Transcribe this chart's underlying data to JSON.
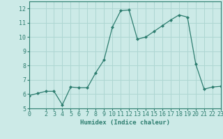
{
  "x": [
    0,
    1,
    2,
    3,
    4,
    5,
    6,
    7,
    8,
    9,
    10,
    11,
    12,
    13,
    14,
    15,
    16,
    17,
    18,
    19,
    20,
    21,
    22,
    23
  ],
  "y": [
    5.9,
    6.05,
    6.2,
    6.2,
    5.25,
    6.5,
    6.45,
    6.45,
    7.5,
    8.4,
    10.7,
    11.85,
    11.9,
    9.85,
    10.0,
    10.4,
    10.8,
    11.2,
    11.55,
    11.4,
    8.1,
    6.35,
    6.5,
    6.55
  ],
  "line_color": "#2d7d6f",
  "marker": "D",
  "marker_size": 2.0,
  "bg_color": "#cceae7",
  "grid_color": "#aed6d2",
  "xlabel": "Humidex (Indice chaleur)",
  "xlim": [
    0,
    23
  ],
  "ylim": [
    5,
    12.5
  ],
  "yticks": [
    5,
    6,
    7,
    8,
    9,
    10,
    11,
    12
  ],
  "xticks": [
    0,
    2,
    3,
    4,
    5,
    6,
    7,
    8,
    9,
    10,
    11,
    12,
    13,
    14,
    15,
    16,
    17,
    18,
    19,
    20,
    21,
    22,
    23
  ],
  "label_fontsize": 6.5,
  "tick_fontsize": 6.0
}
